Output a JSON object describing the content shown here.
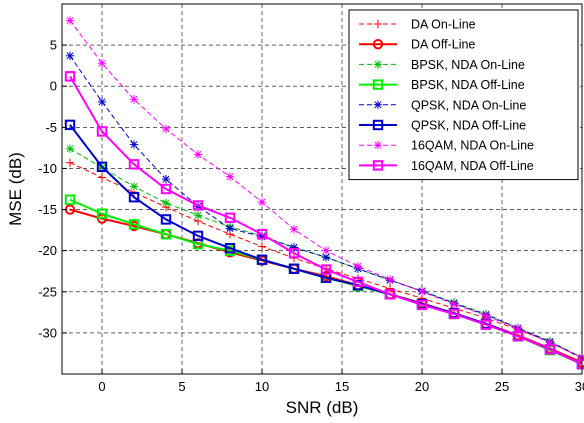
{
  "chart_data": {
    "type": "line",
    "xlabel": "SNR (dB)",
    "ylabel": "MSE (dB)",
    "xlim": [
      -2.5,
      30
    ],
    "ylim": [
      -35,
      10
    ],
    "xticks": [
      0,
      5,
      10,
      15,
      20,
      25,
      30
    ],
    "yticks": [
      -30,
      -25,
      -20,
      -15,
      -10,
      -5,
      0,
      5
    ],
    "xtick_labels": [
      "0",
      "5",
      "10",
      "15",
      "20",
      "25",
      "30"
    ],
    "ytick_labels": [
      "-30",
      "-25",
      "-20",
      "-15",
      "-10",
      "-5",
      "0",
      "5"
    ],
    "grid": true,
    "grid_style": "dashed",
    "legend_position": "top-right",
    "x": [
      -2,
      0,
      2,
      4,
      6,
      8,
      10,
      12,
      14,
      16,
      18,
      20,
      22,
      24,
      26,
      28,
      30
    ],
    "series": [
      {
        "name": "DA On-Line",
        "color": "#ff0000",
        "dashed": true,
        "marker": "plus",
        "width": 1,
        "markerStep": 1,
        "values": [
          -9.3,
          -11.1,
          -12.9,
          -14.7,
          -16.4,
          -18.0,
          -19.5,
          -20.9,
          -22.2,
          -23.4,
          -24.6,
          -25.8,
          -27.0,
          -28.2,
          -29.6,
          -31.1,
          -33.1
        ]
      },
      {
        "name": "DA Off-Line",
        "color": "#ff0000",
        "dashed": false,
        "marker": "circle",
        "width": 2,
        "markerStep": 1,
        "values": [
          -15.0,
          -16.1,
          -17.0,
          -18.0,
          -19.1,
          -20.2,
          -21.2,
          -22.2,
          -23.1,
          -24.2,
          -25.3,
          -26.4,
          -27.6,
          -28.9,
          -30.3,
          -31.9,
          -33.6
        ]
      },
      {
        "name": "BPSK,  NDA On-Line",
        "color": "#00bb00",
        "dashed": true,
        "marker": "star",
        "width": 1,
        "markerStep": 1,
        "values": [
          -7.6,
          -9.9,
          -12.2,
          -14.2,
          -15.7,
          -17.1,
          -18.2,
          -19.6,
          -20.8,
          -22.2,
          -23.6,
          -24.9,
          -26.3,
          -27.7,
          -29.4,
          -31.0,
          -33.0
        ]
      },
      {
        "name": "BPSK,  NDA Off-Line",
        "color": "#00ee00",
        "dashed": false,
        "marker": "square",
        "width": 2,
        "markerStep": 1,
        "values": [
          -13.8,
          -15.5,
          -16.8,
          -18.0,
          -19.2,
          -20.0,
          -21.1,
          -22.2,
          -23.3,
          -24.3,
          -25.3,
          -26.5,
          -27.7,
          -29.0,
          -30.4,
          -32.1,
          -33.8
        ]
      },
      {
        "name": "QPSK,  NDA On-Line",
        "color": "#0000cc",
        "dashed": true,
        "marker": "star",
        "width": 1,
        "markerStep": 1,
        "values": [
          3.7,
          -1.9,
          -7.1,
          -11.3,
          -14.6,
          -17.3,
          -18.3,
          -19.6,
          -20.8,
          -22.2,
          -23.6,
          -24.9,
          -26.4,
          -27.8,
          -29.4,
          -31.1,
          -33.0
        ]
      },
      {
        "name": "QPSK,  NDA Off-Line",
        "color": "#0000cc",
        "dashed": false,
        "marker": "square",
        "width": 2,
        "markerStep": 1,
        "values": [
          -4.7,
          -9.8,
          -13.5,
          -16.2,
          -18.2,
          -19.7,
          -21.1,
          -22.2,
          -23.3,
          -24.2,
          -25.3,
          -26.5,
          -27.6,
          -28.9,
          -30.4,
          -32.0,
          -33.8
        ]
      },
      {
        "name": "16QAM,  NDA On-Line",
        "color": "#ff00ff",
        "dashed": true,
        "marker": "star",
        "width": 1,
        "markerStep": 1,
        "values": [
          8.0,
          2.8,
          -1.6,
          -5.2,
          -8.3,
          -11.0,
          -14.1,
          -17.4,
          -20.0,
          -21.9,
          -23.5,
          -25.0,
          -26.5,
          -27.9,
          -29.5,
          -31.2,
          -33.0
        ]
      },
      {
        "name": "16QAM,  NDA Off-Line",
        "color": "#ff00ff",
        "dashed": false,
        "marker": "square",
        "width": 2,
        "markerStep": 1,
        "values": [
          1.2,
          -5.5,
          -9.5,
          -12.5,
          -14.5,
          -16.0,
          -18.0,
          -20.3,
          -22.3,
          -23.8,
          -25.3,
          -26.6,
          -27.7,
          -29.0,
          -30.4,
          -32.0,
          -33.8
        ]
      }
    ]
  }
}
